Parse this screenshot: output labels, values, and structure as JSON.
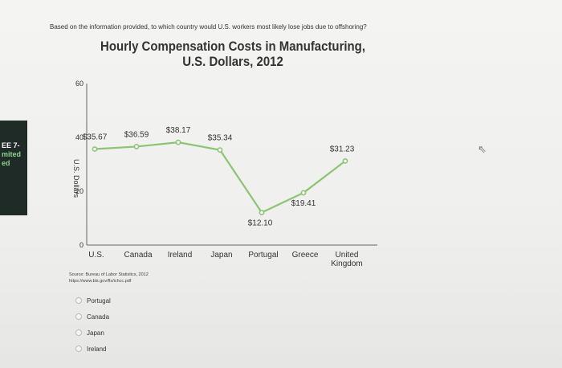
{
  "sidebar": {
    "lines": [
      "EE 7-",
      "mited",
      "ed"
    ]
  },
  "question": {
    "text": "Based on the information provided, to which country would U.S. workers most likely lose jobs due to offshoring?"
  },
  "answers": [
    {
      "label": "Portugal"
    },
    {
      "label": "Canada"
    },
    {
      "label": "Japan"
    },
    {
      "label": "Ireland"
    }
  ],
  "source": {
    "line1": "Source: Bureau of Labor Statistics, 2012",
    "line2": "https://www.bls.gov/fls/ichcc.pdf"
  },
  "colors": {
    "line": "#8cc474",
    "text": "#333333"
  },
  "icons": {
    "cursor": "pointer-arrow-icon"
  },
  "chart_data": {
    "type": "line",
    "title": "Hourly Compensation Costs in Manufacturing,",
    "subtitle": "U.S. Dollars, 2012",
    "ylabel": "U.S. Dollars",
    "xlabel": "",
    "ylim": [
      0,
      60
    ],
    "yticks": [
      "0",
      "20",
      "40",
      "60"
    ],
    "categories": [
      "U.S.",
      "Canada",
      "Ireland",
      "Japan",
      "Portugal",
      "Greece",
      "United Kingdom"
    ],
    "values": [
      35.67,
      36.59,
      38.17,
      35.34,
      12.1,
      19.41,
      31.23
    ],
    "data_labels": [
      "$35.67",
      "$36.59",
      "$38.17",
      "$35.34",
      "$12.10",
      "$19.41",
      "$31.23"
    ],
    "grid": false,
    "legend": "none"
  }
}
